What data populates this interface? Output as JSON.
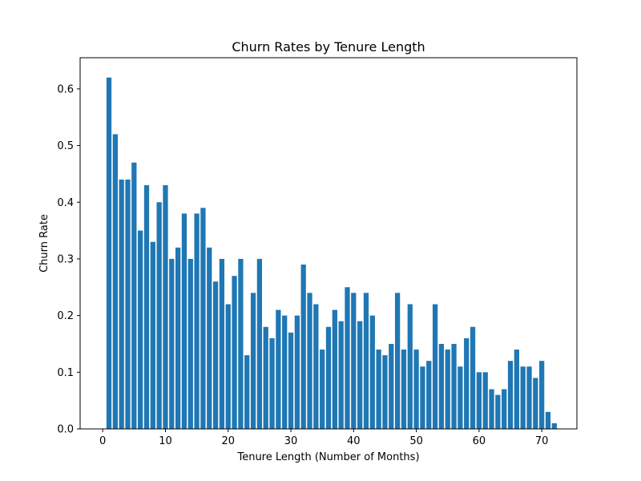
{
  "chart_data": {
    "type": "bar",
    "title": "Churn Rates by Tenure Length",
    "xlabel": "Tenure Length (Number of Months)",
    "ylabel": "Churn Rate",
    "xlim": [
      -3.6,
      75.6
    ],
    "ylim": [
      0,
      0.655
    ],
    "xticks": [
      0,
      10,
      20,
      30,
      40,
      50,
      60,
      70
    ],
    "yticks": [
      0.0,
      0.1,
      0.2,
      0.3,
      0.4,
      0.5,
      0.6
    ],
    "ytick_labels": [
      "0.0",
      "0.1",
      "0.2",
      "0.3",
      "0.4",
      "0.5",
      "0.6"
    ],
    "bar_color": "#1f77b4",
    "grid": false,
    "x": [
      1,
      2,
      3,
      4,
      5,
      6,
      7,
      8,
      9,
      10,
      11,
      12,
      13,
      14,
      15,
      16,
      17,
      18,
      19,
      20,
      21,
      22,
      23,
      24,
      25,
      26,
      27,
      28,
      29,
      30,
      31,
      32,
      33,
      34,
      35,
      36,
      37,
      38,
      39,
      40,
      41,
      42,
      43,
      44,
      45,
      46,
      47,
      48,
      49,
      50,
      51,
      52,
      53,
      54,
      55,
      56,
      57,
      58,
      59,
      60,
      61,
      62,
      63,
      64,
      65,
      66,
      67,
      68,
      69,
      70,
      71,
      72
    ],
    "values": [
      0.62,
      0.52,
      0.44,
      0.44,
      0.47,
      0.35,
      0.43,
      0.33,
      0.4,
      0.43,
      0.3,
      0.32,
      0.38,
      0.3,
      0.38,
      0.39,
      0.32,
      0.26,
      0.3,
      0.22,
      0.27,
      0.3,
      0.13,
      0.24,
      0.3,
      0.18,
      0.16,
      0.21,
      0.2,
      0.17,
      0.2,
      0.29,
      0.24,
      0.22,
      0.14,
      0.18,
      0.21,
      0.19,
      0.25,
      0.24,
      0.19,
      0.24,
      0.2,
      0.14,
      0.13,
      0.15,
      0.24,
      0.14,
      0.22,
      0.14,
      0.11,
      0.12,
      0.22,
      0.15,
      0.14,
      0.15,
      0.11,
      0.16,
      0.18,
      0.1,
      0.1,
      0.07,
      0.06,
      0.07,
      0.12,
      0.14,
      0.11,
      0.11,
      0.09,
      0.12,
      0.03,
      0.01
    ]
  }
}
